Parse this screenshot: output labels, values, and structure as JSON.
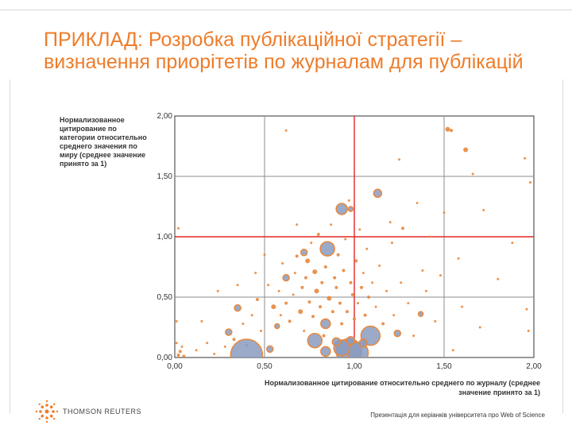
{
  "slide": {
    "title": "ПРИКЛАД: Розробка публікаційної стратегії – визначення приорітетів по журналам для публікацій",
    "footer_logo": "THOMSON REUTERS",
    "footer_note": "Презентація для керіанків університета про Web of Science"
  },
  "colors": {
    "title": "#ee7c2a",
    "small_points": "#e8873c",
    "bubble_fill": "#8a9bbf",
    "bubble_edge": "#e8873c",
    "reference_lines": "#e32626",
    "grid": "#8c8c8c"
  },
  "chart_data": {
    "type": "scatter",
    "title": "",
    "xlabel": "Нормализованное цитирование относительно среднего по журналу (среднее значение принято за 1)",
    "ylabel": "Нормализованное цитирование по категории относительно среднего значения по миру (среднее значение принято за 1)",
    "xlim": [
      0,
      2
    ],
    "ylim": [
      0,
      2
    ],
    "x_ticks": [
      "0,00",
      "0,50",
      "1,00",
      "1,50",
      "2,00"
    ],
    "y_ticks": [
      "0,00",
      "0,50",
      "1,00",
      "1,50",
      "2,00"
    ],
    "reference_lines": {
      "x": 1.0,
      "y": 1.0
    },
    "grid": true,
    "series": [
      {
        "points": [
          {
            "x": 0.4,
            "y": 0.02,
            "size": 20
          },
          {
            "x": 0.97,
            "y": 0.05,
            "size": 16
          },
          {
            "x": 1.02,
            "y": 0.04,
            "size": 13
          },
          {
            "x": 0.93,
            "y": 0.08,
            "size": 10
          },
          {
            "x": 1.09,
            "y": 0.18,
            "size": 12
          },
          {
            "x": 0.78,
            "y": 0.14,
            "size": 9
          },
          {
            "x": 0.85,
            "y": 0.9,
            "size": 9
          },
          {
            "x": 0.93,
            "y": 1.23,
            "size": 7
          },
          {
            "x": 1.13,
            "y": 1.36,
            "size": 5
          },
          {
            "x": 0.84,
            "y": 0.28,
            "size": 6
          },
          {
            "x": 0.84,
            "y": 0.05,
            "size": 6
          },
          {
            "x": 0.9,
            "y": 0.13,
            "size": 5
          },
          {
            "x": 0.98,
            "y": 0.14,
            "size": 5
          },
          {
            "x": 1.05,
            "y": 0.12,
            "size": 5
          },
          {
            "x": 0.3,
            "y": 0.21,
            "size": 4
          },
          {
            "x": 0.53,
            "y": 0.07,
            "size": 4
          },
          {
            "x": 0.35,
            "y": 0.41,
            "size": 4
          },
          {
            "x": 0.72,
            "y": 0.87,
            "size": 4
          },
          {
            "x": 0.62,
            "y": 0.66,
            "size": 4
          },
          {
            "x": 0.57,
            "y": 0.26,
            "size": 3
          },
          {
            "x": 1.24,
            "y": 0.2,
            "size": 4
          },
          {
            "x": 1.37,
            "y": 0.36,
            "size": 3
          },
          {
            "x": 0.98,
            "y": 1.23,
            "size": 3
          }
        ]
      },
      {
        "points": [
          {
            "x": 0.02,
            "y": 0.02,
            "size": 2
          },
          {
            "x": 0.03,
            "y": 0.05,
            "size": 2
          },
          {
            "x": 0.05,
            "y": 0.01,
            "size": 2
          },
          {
            "x": 0.01,
            "y": 0.12,
            "size": 1.5
          },
          {
            "x": 0.04,
            "y": 0.09,
            "size": 1.5
          },
          {
            "x": 0.01,
            "y": 0.3,
            "size": 1.5
          },
          {
            "x": 0.02,
            "y": 1.07,
            "size": 1.5
          },
          {
            "x": 0.12,
            "y": 0.06,
            "size": 1.5
          },
          {
            "x": 0.18,
            "y": 0.12,
            "size": 1.5
          },
          {
            "x": 0.22,
            "y": 0.03,
            "size": 1.5
          },
          {
            "x": 0.28,
            "y": 0.09,
            "size": 1.5
          },
          {
            "x": 0.33,
            "y": 0.15,
            "size": 2
          },
          {
            "x": 0.38,
            "y": 0.28,
            "size": 1.5
          },
          {
            "x": 0.43,
            "y": 0.35,
            "size": 1.5
          },
          {
            "x": 0.46,
            "y": 0.48,
            "size": 2
          },
          {
            "x": 0.48,
            "y": 0.22,
            "size": 1.5
          },
          {
            "x": 0.52,
            "y": 0.6,
            "size": 1.5
          },
          {
            "x": 0.55,
            "y": 0.42,
            "size": 3
          },
          {
            "x": 0.58,
            "y": 0.55,
            "size": 1.5
          },
          {
            "x": 0.59,
            "y": 0.35,
            "size": 1.5
          },
          {
            "x": 0.6,
            "y": 0.78,
            "size": 1.5
          },
          {
            "x": 0.62,
            "y": 0.45,
            "size": 2
          },
          {
            "x": 0.64,
            "y": 0.3,
            "size": 2
          },
          {
            "x": 0.66,
            "y": 0.52,
            "size": 1.5
          },
          {
            "x": 0.67,
            "y": 0.7,
            "size": 1.5
          },
          {
            "x": 0.68,
            "y": 0.84,
            "size": 2
          },
          {
            "x": 0.7,
            "y": 0.38,
            "size": 3
          },
          {
            "x": 0.71,
            "y": 0.58,
            "size": 2
          },
          {
            "x": 0.72,
            "y": 0.22,
            "size": 1.5
          },
          {
            "x": 0.73,
            "y": 0.66,
            "size": 2
          },
          {
            "x": 0.74,
            "y": 0.8,
            "size": 3
          },
          {
            "x": 0.75,
            "y": 0.46,
            "size": 2
          },
          {
            "x": 0.76,
            "y": 0.95,
            "size": 1.5
          },
          {
            "x": 0.77,
            "y": 0.34,
            "size": 2
          },
          {
            "x": 0.78,
            "y": 0.71,
            "size": 3
          },
          {
            "x": 0.79,
            "y": 0.55,
            "size": 3
          },
          {
            "x": 0.8,
            "y": 1.02,
            "size": 2
          },
          {
            "x": 0.81,
            "y": 0.42,
            "size": 2
          },
          {
            "x": 0.82,
            "y": 0.62,
            "size": 2
          },
          {
            "x": 0.83,
            "y": 0.18,
            "size": 2
          },
          {
            "x": 0.84,
            "y": 0.75,
            "size": 2
          },
          {
            "x": 0.86,
            "y": 0.49,
            "size": 3
          },
          {
            "x": 0.87,
            "y": 1.1,
            "size": 1.5
          },
          {
            "x": 0.88,
            "y": 0.38,
            "size": 2
          },
          {
            "x": 0.89,
            "y": 0.66,
            "size": 2
          },
          {
            "x": 0.9,
            "y": 0.58,
            "size": 2
          },
          {
            "x": 0.91,
            "y": 0.85,
            "size": 2
          },
          {
            "x": 0.92,
            "y": 0.45,
            "size": 2
          },
          {
            "x": 0.93,
            "y": 0.28,
            "size": 2
          },
          {
            "x": 0.94,
            "y": 0.72,
            "size": 2
          },
          {
            "x": 0.95,
            "y": 0.98,
            "size": 1.5
          },
          {
            "x": 0.96,
            "y": 0.38,
            "size": 2
          },
          {
            "x": 0.97,
            "y": 1.3,
            "size": 1.5
          },
          {
            "x": 0.98,
            "y": 0.62,
            "size": 2
          },
          {
            "x": 0.99,
            "y": 0.52,
            "size": 2
          },
          {
            "x": 1.0,
            "y": 0.32,
            "size": 2
          },
          {
            "x": 1.01,
            "y": 0.8,
            "size": 2
          },
          {
            "x": 1.02,
            "y": 0.45,
            "size": 1.5
          },
          {
            "x": 1.03,
            "y": 1.06,
            "size": 1.5
          },
          {
            "x": 1.04,
            "y": 0.58,
            "size": 2
          },
          {
            "x": 1.05,
            "y": 0.7,
            "size": 1.5
          },
          {
            "x": 1.06,
            "y": 0.35,
            "size": 2
          },
          {
            "x": 1.07,
            "y": 0.9,
            "size": 1.5
          },
          {
            "x": 1.08,
            "y": 0.5,
            "size": 2
          },
          {
            "x": 1.1,
            "y": 0.62,
            "size": 1.5
          },
          {
            "x": 1.12,
            "y": 0.42,
            "size": 1.5
          },
          {
            "x": 1.14,
            "y": 0.76,
            "size": 1.5
          },
          {
            "x": 1.16,
            "y": 0.28,
            "size": 2
          },
          {
            "x": 1.18,
            "y": 0.55,
            "size": 1.5
          },
          {
            "x": 1.2,
            "y": 1.12,
            "size": 1.5
          },
          {
            "x": 1.21,
            "y": 0.95,
            "size": 1.5
          },
          {
            "x": 1.22,
            "y": 0.35,
            "size": 1.5
          },
          {
            "x": 1.25,
            "y": 1.64,
            "size": 1.5
          },
          {
            "x": 1.26,
            "y": 0.62,
            "size": 1.5
          },
          {
            "x": 1.27,
            "y": 1.07,
            "size": 2
          },
          {
            "x": 1.3,
            "y": 0.45,
            "size": 1.5
          },
          {
            "x": 1.33,
            "y": 0.18,
            "size": 1.5
          },
          {
            "x": 1.35,
            "y": 1.28,
            "size": 1.5
          },
          {
            "x": 1.38,
            "y": 0.72,
            "size": 1.5
          },
          {
            "x": 1.4,
            "y": 0.55,
            "size": 1.5
          },
          {
            "x": 1.42,
            "y": 1.0,
            "size": 1.5
          },
          {
            "x": 1.45,
            "y": 0.3,
            "size": 1.5
          },
          {
            "x": 1.48,
            "y": 0.68,
            "size": 1.5
          },
          {
            "x": 1.5,
            "y": 1.2,
            "size": 1.5
          },
          {
            "x": 1.52,
            "y": 1.89,
            "size": 3
          },
          {
            "x": 1.54,
            "y": 1.88,
            "size": 2
          },
          {
            "x": 1.55,
            "y": 0.06,
            "size": 1.5
          },
          {
            "x": 1.58,
            "y": 0.82,
            "size": 1.5
          },
          {
            "x": 1.6,
            "y": 0.42,
            "size": 1.5
          },
          {
            "x": 1.62,
            "y": 1.72,
            "size": 3
          },
          {
            "x": 1.66,
            "y": 1.52,
            "size": 1.5
          },
          {
            "x": 1.7,
            "y": 0.25,
            "size": 1.5
          },
          {
            "x": 1.72,
            "y": 1.22,
            "size": 1.5
          },
          {
            "x": 1.8,
            "y": 0.65,
            "size": 1.5
          },
          {
            "x": 1.88,
            "y": 0.95,
            "size": 1.5
          },
          {
            "x": 1.95,
            "y": 1.65,
            "size": 1.5
          },
          {
            "x": 1.96,
            "y": 0.4,
            "size": 1.5
          },
          {
            "x": 1.97,
            "y": 0.22,
            "size": 1.5
          },
          {
            "x": 1.98,
            "y": 1.45,
            "size": 1.5
          },
          {
            "x": 0.24,
            "y": 0.55,
            "size": 1.5
          },
          {
            "x": 0.15,
            "y": 0.3,
            "size": 1.5
          },
          {
            "x": 0.4,
            "y": 0.1,
            "size": 1.5
          },
          {
            "x": 0.5,
            "y": 0.85,
            "size": 1.5
          },
          {
            "x": 0.62,
            "y": 1.88,
            "size": 1.5
          },
          {
            "x": 0.68,
            "y": 1.1,
            "size": 1.5
          },
          {
            "x": 0.35,
            "y": 0.6,
            "size": 1.5
          },
          {
            "x": 0.45,
            "y": 0.7,
            "size": 1.5
          }
        ]
      }
    ]
  }
}
